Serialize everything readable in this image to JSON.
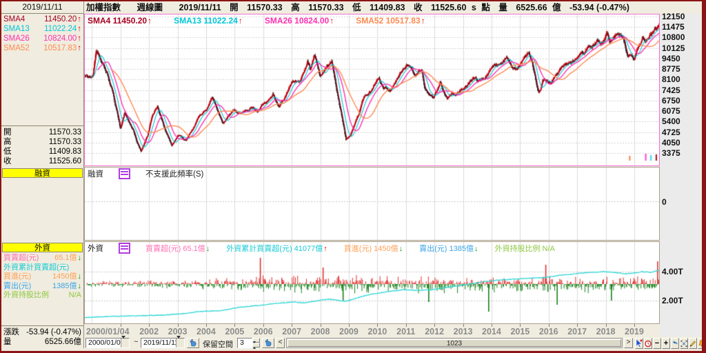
{
  "sidebar": {
    "date": "2019/11/11",
    "sma_rows": [
      {
        "label": "SMA4",
        "value": "11450.20",
        "color": "#a50021",
        "arrow": "up"
      },
      {
        "label": "SMA13",
        "value": "11022.24",
        "color": "#00c6d8",
        "arrow": "up"
      },
      {
        "label": "SMA26",
        "value": "10824.00",
        "color": "#ff30b0",
        "arrow": "up"
      },
      {
        "label": "SMA52",
        "value": "10517.83",
        "color": "#ff8a50",
        "arrow": "up"
      }
    ],
    "ohlc_rows": [
      {
        "label": "開",
        "value": "11570.33"
      },
      {
        "label": "高",
        "value": "11570.33"
      },
      {
        "label": "低",
        "value": "11409.83"
      },
      {
        "label": "收",
        "value": "11525.60"
      }
    ],
    "margin_header": "融資",
    "foreign_header": "外資",
    "foreign_rows": [
      {
        "label": "買賣超(元)",
        "value": "65.1億",
        "label_color": "#ff6eb4",
        "value_color": "#ffa054",
        "arrow": "down"
      },
      {
        "label": "外資累計買賣超(元)",
        "value": "",
        "label_color": "#15cbd6",
        "value_color": "#15cbd6",
        "arrow": ""
      },
      {
        "label": "買進(元)",
        "value": "1450億",
        "label_color": "#ffa054",
        "value_color": "#ffa054",
        "arrow": "down"
      },
      {
        "label": "賣出(元)",
        "value": "1385億",
        "label_color": "#3aa5e8",
        "value_color": "#3aa5e8",
        "arrow": "down"
      },
      {
        "label": "外資持股比例",
        "value": "N/A",
        "label_color": "#8ec73f",
        "value_color": "#8ec73f",
        "arrow": ""
      }
    ],
    "change_rows": [
      {
        "label": "漲跌",
        "value": "-53.94 (-0.47%)"
      },
      {
        "label": "量",
        "value": "6525.66億"
      }
    ]
  },
  "header": {
    "title": "加權指數",
    "period": "週線圖",
    "date": "2019/11/11",
    "open_label": "開",
    "open_value": "11570.33",
    "high_label": "高",
    "high_value": "11570.33",
    "low_label": "低",
    "low_value": "11409.83",
    "close_label": "收",
    "close_value": "11525.60",
    "close_flag": "s",
    "point_label": "點",
    "vol_label": "量",
    "vol_value": "6525.66",
    "vol_unit": "億",
    "change": "-53.94 (-0.47%)"
  },
  "margin_panel": {
    "title": "融資",
    "message": "不支援此頻率(S)",
    "zero_label": "0"
  },
  "foreign_panel": {
    "title": "外資",
    "stats": [
      {
        "label": "買賣超(元)",
        "value": "65.1億",
        "color": "#ff6eb4",
        "arrow": "down"
      },
      {
        "label": "外資累計買賣超(元)",
        "value": "41077億",
        "color": "#15cbd6",
        "arrow": "up"
      },
      {
        "label": "買進(元)",
        "value": "1450億",
        "color": "#ffa054",
        "arrow": "down"
      },
      {
        "label": "賣出(元)",
        "value": "1385億",
        "color": "#3aa5e8",
        "arrow": "down"
      },
      {
        "label": "外資持股比例",
        "value": "N/A",
        "color": "#8ec73f",
        "arrow": ""
      }
    ]
  },
  "xaxis": {
    "first_label": "2000/01/04",
    "year_labels": [
      "2002",
      "2003",
      "2004",
      "2005",
      "2006",
      "2007",
      "2008",
      "2009",
      "2010",
      "2011",
      "2012",
      "2013",
      "2014",
      "2015",
      "2016",
      "2017",
      "2018",
      "2019"
    ]
  },
  "toolbar": {
    "from_date": "2000/01/04",
    "separator": "~",
    "to_date": "2019/11/11",
    "keep_space_label": "保留空間",
    "keep_space_value": "3",
    "scroll_left": "<",
    "scroll_value": "1023",
    "scroll_right": ">",
    "minus": "−",
    "plus": "+"
  },
  "chart_data": {
    "type": "candlestick",
    "title": "加權指數 週線圖",
    "x_range": [
      1999.72,
      2019.87
    ],
    "bars": 1048,
    "visible_bars": 1023,
    "ylim": [
      3375,
      12150
    ],
    "y_ticks": [
      "12150",
      "11475",
      "10800",
      "10125",
      "9450",
      "8775",
      "8100",
      "7425",
      "6750",
      "6075",
      "5400",
      "4725",
      "4050",
      "3375"
    ],
    "sma": [
      {
        "name": "SMA4",
        "period": 4,
        "color": "#a50021"
      },
      {
        "name": "SMA13",
        "period": 13,
        "color": "#00c6d8"
      },
      {
        "name": "SMA26",
        "period": 26,
        "color": "#ff30b0"
      },
      {
        "name": "SMA52",
        "period": 52,
        "color": "#ff8a50"
      }
    ],
    "up_color": "#d40000",
    "down_color": "#222222",
    "price_anchors": [
      [
        1999.72,
        8300
      ],
      [
        2000.04,
        8450
      ],
      [
        2000.15,
        10200
      ],
      [
        2000.35,
        9200
      ],
      [
        2000.55,
        8600
      ],
      [
        2000.75,
        7300
      ],
      [
        2001.0,
        4900
      ],
      [
        2001.15,
        5900
      ],
      [
        2001.45,
        4900
      ],
      [
        2001.72,
        3450
      ],
      [
        2001.95,
        4450
      ],
      [
        2002.1,
        5750
      ],
      [
        2002.3,
        6450
      ],
      [
        2002.55,
        5050
      ],
      [
        2002.8,
        3900
      ],
      [
        2003.05,
        4450
      ],
      [
        2003.3,
        4200
      ],
      [
        2003.75,
        5700
      ],
      [
        2004.0,
        6100
      ],
      [
        2004.2,
        7030
      ],
      [
        2004.4,
        6100
      ],
      [
        2004.6,
        5350
      ],
      [
        2004.85,
        5900
      ],
      [
        2005.0,
        6140
      ],
      [
        2005.3,
        5850
      ],
      [
        2005.55,
        6300
      ],
      [
        2005.8,
        6100
      ],
      [
        2006.0,
        6550
      ],
      [
        2006.35,
        7300
      ],
      [
        2006.55,
        6400
      ],
      [
        2006.8,
        7000
      ],
      [
        2007.0,
        7900
      ],
      [
        2007.3,
        8100
      ],
      [
        2007.55,
        9500
      ],
      [
        2007.65,
        8850
      ],
      [
        2007.8,
        9750
      ],
      [
        2008.0,
        8300
      ],
      [
        2008.15,
        8800
      ],
      [
        2008.4,
        9200
      ],
      [
        2008.6,
        7000
      ],
      [
        2008.75,
        5700
      ],
      [
        2008.9,
        4150
      ],
      [
        2009.05,
        4500
      ],
      [
        2009.2,
        5300
      ],
      [
        2009.45,
        6500
      ],
      [
        2009.6,
        7000
      ],
      [
        2009.9,
        7700
      ],
      [
        2010.05,
        8200
      ],
      [
        2010.2,
        7600
      ],
      [
        2010.45,
        7300
      ],
      [
        2010.7,
        7900
      ],
      [
        2010.95,
        8800
      ],
      [
        2011.1,
        9000
      ],
      [
        2011.3,
        8600
      ],
      [
        2011.55,
        8700
      ],
      [
        2011.65,
        7600
      ],
      [
        2011.95,
        6900
      ],
      [
        2012.2,
        8000
      ],
      [
        2012.45,
        7100
      ],
      [
        2012.75,
        7400
      ],
      [
        2013.0,
        7850
      ],
      [
        2013.4,
        8200
      ],
      [
        2013.55,
        7900
      ],
      [
        2013.9,
        8600
      ],
      [
        2014.2,
        8900
      ],
      [
        2014.5,
        9500
      ],
      [
        2014.75,
        8900
      ],
      [
        2015.0,
        9300
      ],
      [
        2015.3,
        9950
      ],
      [
        2015.65,
        7500
      ],
      [
        2015.8,
        8200
      ],
      [
        2015.95,
        8100
      ],
      [
        2016.05,
        7800
      ],
      [
        2016.3,
        8700
      ],
      [
        2016.6,
        9200
      ],
      [
        2016.85,
        9300
      ],
      [
        2017.1,
        9750
      ],
      [
        2017.4,
        10100
      ],
      [
        2017.7,
        10600
      ],
      [
        2017.9,
        10550
      ],
      [
        2018.05,
        11250
      ],
      [
        2018.15,
        10600
      ],
      [
        2018.45,
        11000
      ],
      [
        2018.6,
        10800
      ],
      [
        2018.78,
        9700
      ],
      [
        2018.9,
        9800
      ],
      [
        2019.0,
        9550
      ],
      [
        2019.15,
        10200
      ],
      [
        2019.3,
        10600
      ],
      [
        2019.42,
        10450
      ],
      [
        2019.6,
        10800
      ],
      [
        2019.7,
        10900
      ],
      [
        2019.87,
        11525
      ]
    ],
    "event_markers": [
      {
        "t": 2018.84,
        "color": "#ff8a50",
        "h": 7
      },
      {
        "t": 2019.4,
        "color": "#ff4fd8",
        "h": 10
      },
      {
        "t": 2019.58,
        "color": "#49d8e8",
        "h": 8
      },
      {
        "t": 2019.77,
        "color": "#aa2222",
        "h": 9
      }
    ],
    "foreign": {
      "bar_up_color": "#e03030",
      "bar_down_color": "#15801a",
      "line_color": "#35d8d8",
      "axis_labels": [
        {
          "text": "4.00T",
          "value": 4.0
        },
        {
          "text": "2.00T",
          "value": 2.0
        }
      ],
      "cumulative_anchors": [
        [
          1999.72,
          0.82
        ],
        [
          2000.5,
          0.9
        ],
        [
          2001.5,
          0.95
        ],
        [
          2002.5,
          1.0
        ],
        [
          2003.2,
          1.1
        ],
        [
          2003.8,
          1.25
        ],
        [
          2004.5,
          1.3
        ],
        [
          2005.2,
          1.55
        ],
        [
          2005.8,
          1.65
        ],
        [
          2006.3,
          1.78
        ],
        [
          2007.0,
          1.9
        ],
        [
          2007.5,
          1.85
        ],
        [
          2007.9,
          2.0
        ],
        [
          2008.3,
          2.1
        ],
        [
          2008.9,
          1.95
        ],
        [
          2009.3,
          2.2
        ],
        [
          2009.8,
          2.45
        ],
        [
          2010.3,
          2.6
        ],
        [
          2010.9,
          2.75
        ],
        [
          2011.4,
          2.7
        ],
        [
          2011.9,
          2.75
        ],
        [
          2012.4,
          2.9
        ],
        [
          2012.9,
          3.05
        ],
        [
          2013.4,
          3.2
        ],
        [
          2013.9,
          3.35
        ],
        [
          2014.4,
          3.45
        ],
        [
          2014.9,
          3.5
        ],
        [
          2015.4,
          3.55
        ],
        [
          2015.9,
          3.6
        ],
        [
          2016.4,
          3.75
        ],
        [
          2016.9,
          3.85
        ],
        [
          2017.4,
          3.95
        ],
        [
          2017.9,
          4.0
        ],
        [
          2018.3,
          3.95
        ],
        [
          2018.7,
          3.85
        ],
        [
          2019.0,
          3.9
        ],
        [
          2019.3,
          4.0
        ],
        [
          2019.6,
          3.95
        ],
        [
          2019.87,
          4.11
        ]
      ],
      "bar_amplitude_anchors": [
        [
          1999.72,
          5
        ],
        [
          2004,
          8
        ],
        [
          2006,
          14
        ],
        [
          2009,
          15
        ],
        [
          2019.9,
          13
        ]
      ],
      "bar_spikes": [
        {
          "t": 2005.9,
          "v": 38
        },
        {
          "t": 2008.1,
          "v": 24
        },
        {
          "t": 2015.9,
          "v": 28
        },
        {
          "t": 2019.82,
          "v": 33
        },
        {
          "t": 2008.8,
          "v": -24
        },
        {
          "t": 2011.8,
          "v": -26
        },
        {
          "t": 2013.9,
          "v": -40
        },
        {
          "t": 2016.3,
          "v": -30
        },
        {
          "t": 2018.2,
          "v": -24
        }
      ]
    }
  }
}
